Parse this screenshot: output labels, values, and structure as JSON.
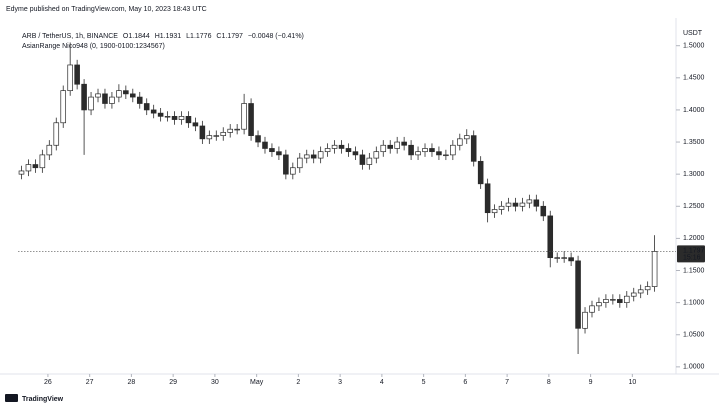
{
  "header": "Edyme published on TradingView.com, May 10, 2023 18:43 UTC",
  "footer": "TradingView",
  "chart_data": {
    "type": "candlestick",
    "symbol": "ARB / TetherUS, 1h, BINANCE",
    "ohlc_legend": [
      "O1.1844",
      "H1.1931",
      "L1.1776",
      "C1.1797",
      "−0.0048 (−0.41%)"
    ],
    "indicator": "AsianRange Nico948 (0, 1900-0100:1234567)",
    "currency": "USDT",
    "last_price": 1.1797,
    "countdown": "15:16",
    "up_color": "#ffffff",
    "down_color": "#2b2b2b",
    "ylim": [
      0.992,
      1.54
    ],
    "yticks": [
      {
        "value": 1.5,
        "label": "1.5000"
      },
      {
        "value": 1.45,
        "label": "1.4500"
      },
      {
        "value": 1.4,
        "label": "1.4000"
      },
      {
        "value": 1.35,
        "label": "1.3500"
      },
      {
        "value": 1.3,
        "label": "1.3000"
      },
      {
        "value": 1.25,
        "label": "1.2500"
      },
      {
        "value": 1.2,
        "label": "1.2000"
      },
      {
        "value": 1.15,
        "label": "1.1500"
      },
      {
        "value": 1.1,
        "label": "1.1000"
      },
      {
        "value": 1.05,
        "label": "1.0500"
      },
      {
        "value": 1.0,
        "label": "1.0000"
      }
    ],
    "xlim": [
      0,
      94
    ],
    "xticks": [
      {
        "value": 4.3,
        "label": "26"
      },
      {
        "value": 10.3,
        "label": "27"
      },
      {
        "value": 16.3,
        "label": "28"
      },
      {
        "value": 22.3,
        "label": "29"
      },
      {
        "value": 28.3,
        "label": "30"
      },
      {
        "value": 34.3,
        "label": "May"
      },
      {
        "value": 40.3,
        "label": "2"
      },
      {
        "value": 46.3,
        "label": "3"
      },
      {
        "value": 52.3,
        "label": "4"
      },
      {
        "value": 58.3,
        "label": "5"
      },
      {
        "value": 64.3,
        "label": "6"
      },
      {
        "value": 70.3,
        "label": "7"
      },
      {
        "value": 76.3,
        "label": "8"
      },
      {
        "value": 82.3,
        "label": "9"
      },
      {
        "value": 88.3,
        "label": "10"
      }
    ],
    "ohlc": [
      [
        1.3,
        1.313,
        1.292,
        1.305
      ],
      [
        1.305,
        1.323,
        1.297,
        1.315
      ],
      [
        1.315,
        1.323,
        1.302,
        1.31
      ],
      [
        1.31,
        1.338,
        1.302,
        1.33
      ],
      [
        1.33,
        1.353,
        1.322,
        1.345
      ],
      [
        1.345,
        1.388,
        1.337,
        1.38
      ],
      [
        1.38,
        1.438,
        1.372,
        1.43
      ],
      [
        1.43,
        1.505,
        1.422,
        1.47
      ],
      [
        1.47,
        1.478,
        1.432,
        1.44
      ],
      [
        1.44,
        1.448,
        1.33,
        1.4
      ],
      [
        1.4,
        1.428,
        1.392,
        1.42
      ],
      [
        1.42,
        1.433,
        1.412,
        1.425
      ],
      [
        1.425,
        1.433,
        1.402,
        1.41
      ],
      [
        1.41,
        1.428,
        1.402,
        1.42
      ],
      [
        1.42,
        1.44,
        1.412,
        1.43
      ],
      [
        1.43,
        1.438,
        1.417,
        1.425
      ],
      [
        1.425,
        1.433,
        1.412,
        1.42
      ],
      [
        1.42,
        1.428,
        1.402,
        1.41
      ],
      [
        1.41,
        1.418,
        1.392,
        1.4
      ],
      [
        1.4,
        1.408,
        1.387,
        1.395
      ],
      [
        1.395,
        1.403,
        1.382,
        1.39
      ],
      [
        1.39,
        1.398,
        1.382,
        1.39
      ],
      [
        1.39,
        1.398,
        1.377,
        1.385
      ],
      [
        1.385,
        1.398,
        1.377,
        1.39
      ],
      [
        1.39,
        1.398,
        1.372,
        1.38
      ],
      [
        1.38,
        1.388,
        1.367,
        1.375
      ],
      [
        1.375,
        1.383,
        1.347,
        1.355
      ],
      [
        1.355,
        1.368,
        1.347,
        1.36
      ],
      [
        1.36,
        1.368,
        1.352,
        1.36
      ],
      [
        1.36,
        1.373,
        1.352,
        1.365
      ],
      [
        1.365,
        1.378,
        1.357,
        1.37
      ],
      [
        1.37,
        1.378,
        1.362,
        1.37
      ],
      [
        1.37,
        1.425,
        1.362,
        1.41
      ],
      [
        1.41,
        1.418,
        1.352,
        1.36
      ],
      [
        1.36,
        1.368,
        1.342,
        1.35
      ],
      [
        1.35,
        1.358,
        1.332,
        1.34
      ],
      [
        1.34,
        1.348,
        1.327,
        1.335
      ],
      [
        1.335,
        1.343,
        1.322,
        1.33
      ],
      [
        1.33,
        1.338,
        1.292,
        1.3
      ],
      [
        1.3,
        1.318,
        1.292,
        1.31
      ],
      [
        1.31,
        1.333,
        1.302,
        1.325
      ],
      [
        1.325,
        1.338,
        1.317,
        1.33
      ],
      [
        1.33,
        1.338,
        1.317,
        1.325
      ],
      [
        1.325,
        1.343,
        1.317,
        1.335
      ],
      [
        1.335,
        1.348,
        1.327,
        1.34
      ],
      [
        1.34,
        1.353,
        1.332,
        1.345
      ],
      [
        1.345,
        1.353,
        1.332,
        1.34
      ],
      [
        1.34,
        1.348,
        1.327,
        1.335
      ],
      [
        1.335,
        1.343,
        1.322,
        1.33
      ],
      [
        1.33,
        1.338,
        1.307,
        1.315
      ],
      [
        1.315,
        1.333,
        1.307,
        1.325
      ],
      [
        1.325,
        1.343,
        1.317,
        1.335
      ],
      [
        1.335,
        1.353,
        1.327,
        1.345
      ],
      [
        1.345,
        1.353,
        1.332,
        1.34
      ],
      [
        1.34,
        1.358,
        1.332,
        1.35
      ],
      [
        1.35,
        1.358,
        1.337,
        1.345
      ],
      [
        1.345,
        1.353,
        1.322,
        1.33
      ],
      [
        1.33,
        1.343,
        1.322,
        1.335
      ],
      [
        1.335,
        1.348,
        1.327,
        1.34
      ],
      [
        1.34,
        1.348,
        1.327,
        1.335
      ],
      [
        1.335,
        1.343,
        1.322,
        1.33
      ],
      [
        1.33,
        1.338,
        1.322,
        1.33
      ],
      [
        1.33,
        1.353,
        1.322,
        1.345
      ],
      [
        1.345,
        1.363,
        1.337,
        1.355
      ],
      [
        1.355,
        1.37,
        1.347,
        1.36
      ],
      [
        1.36,
        1.368,
        1.312,
        1.32
      ],
      [
        1.32,
        1.328,
        1.277,
        1.285
      ],
      [
        1.285,
        1.293,
        1.225,
        1.24
      ],
      [
        1.24,
        1.253,
        1.232,
        1.245
      ],
      [
        1.245,
        1.258,
        1.237,
        1.25
      ],
      [
        1.25,
        1.263,
        1.242,
        1.255
      ],
      [
        1.255,
        1.263,
        1.242,
        1.25
      ],
      [
        1.25,
        1.263,
        1.242,
        1.255
      ],
      [
        1.255,
        1.268,
        1.247,
        1.26
      ],
      [
        1.26,
        1.268,
        1.242,
        1.25
      ],
      [
        1.25,
        1.258,
        1.227,
        1.235
      ],
      [
        1.235,
        1.243,
        1.155,
        1.17
      ],
      [
        1.17,
        1.178,
        1.162,
        1.17
      ],
      [
        1.17,
        1.18,
        1.162,
        1.17
      ],
      [
        1.17,
        1.178,
        1.157,
        1.165
      ],
      [
        1.165,
        1.173,
        1.02,
        1.06
      ],
      [
        1.06,
        1.093,
        1.052,
        1.085
      ],
      [
        1.085,
        1.103,
        1.077,
        1.095
      ],
      [
        1.095,
        1.108,
        1.087,
        1.1
      ],
      [
        1.1,
        1.113,
        1.092,
        1.105
      ],
      [
        1.105,
        1.113,
        1.097,
        1.105
      ],
      [
        1.105,
        1.113,
        1.092,
        1.1
      ],
      [
        1.1,
        1.118,
        1.092,
        1.11
      ],
      [
        1.11,
        1.123,
        1.102,
        1.115
      ],
      [
        1.115,
        1.128,
        1.107,
        1.12
      ],
      [
        1.12,
        1.133,
        1.112,
        1.125
      ],
      [
        1.125,
        1.205,
        1.117,
        1.1797
      ]
    ]
  }
}
